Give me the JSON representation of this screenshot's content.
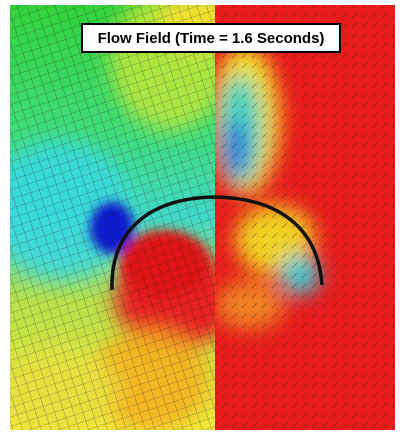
{
  "title": "Flow Field (Time = 1.6 Seconds)"
}
